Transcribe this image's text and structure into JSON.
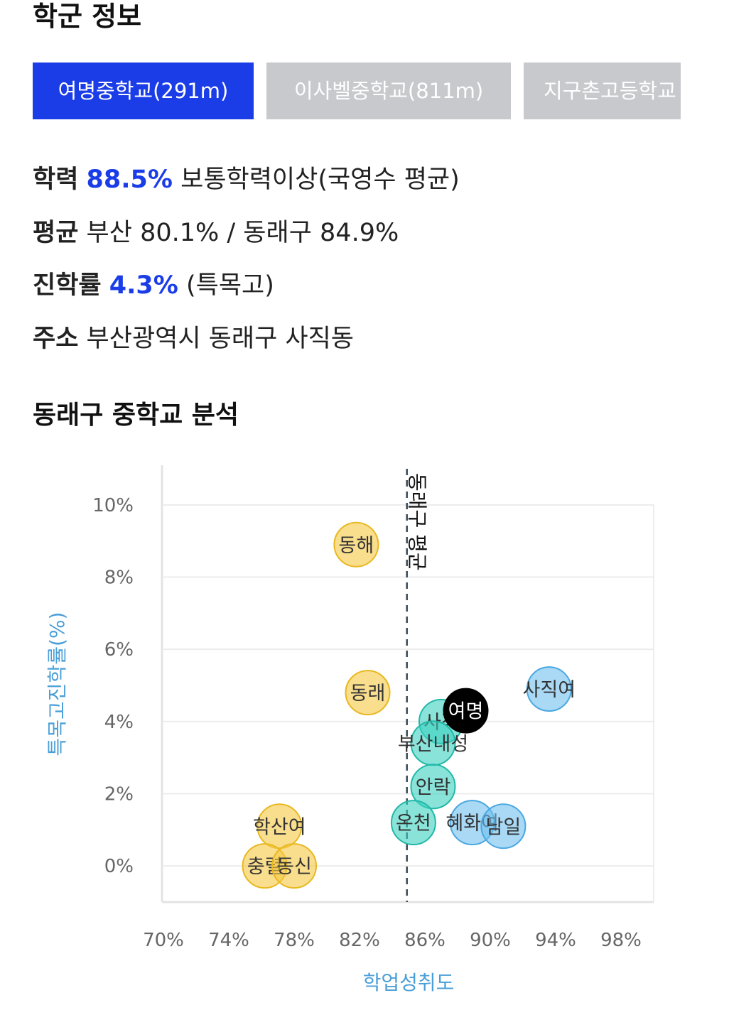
{
  "section_school_info": {
    "title": "학군 정보"
  },
  "tabs": [
    {
      "label": "여명중학교(291m)",
      "active": true
    },
    {
      "label": "이사벨중학교(811m)",
      "active": false
    },
    {
      "label": "지구촌고등학교",
      "active": false
    }
  ],
  "info": {
    "academic": {
      "label": "학력",
      "value": "88.5%",
      "desc": "보통학력이상(국영수 평균)"
    },
    "average": {
      "label": "평균",
      "text": "부산 80.1% / 동래구 84.9%"
    },
    "advancement": {
      "label": "진학률",
      "value": "4.3%",
      "desc": "(특목고)"
    },
    "address": {
      "label": "주소",
      "text": "부산광역시 동래구 사직동"
    }
  },
  "section_analysis": {
    "title": "동래구 중학교 분석"
  },
  "colors": {
    "accent": "#1b3de8",
    "tab_inactive": "#c7c9cd",
    "bubble_yellow": "#f5c842",
    "bubble_teal": "#3ad0c0",
    "bubble_blue": "#6fbfee",
    "highlight": "#000000",
    "axis_label": "#4a9fd8"
  },
  "chart_data": {
    "type": "scatter",
    "xlabel": "학업성취도",
    "ylabel": "특목고진학률(%)",
    "xlim": [
      70,
      100
    ],
    "ylim": [
      -1,
      11
    ],
    "x_ticks": [
      "70%",
      "74%",
      "78%",
      "82%",
      "86%",
      "90%",
      "94%",
      "98%"
    ],
    "x_tick_values": [
      70,
      74,
      78,
      82,
      86,
      90,
      94,
      98
    ],
    "y_ticks": [
      "0%",
      "2%",
      "4%",
      "6%",
      "8%",
      "10%"
    ],
    "y_tick_values": [
      0,
      2,
      4,
      6,
      8,
      10
    ],
    "reference_line": {
      "label": "동래구 평균",
      "x": 84.9
    },
    "points": [
      {
        "name": "동해",
        "x": 81.8,
        "y": 8.9,
        "group": "yellow"
      },
      {
        "name": "동래",
        "x": 82.5,
        "y": 4.8,
        "group": "yellow"
      },
      {
        "name": "학산여",
        "x": 77.1,
        "y": 1.1,
        "group": "yellow"
      },
      {
        "name": "충렬",
        "x": 76.2,
        "y": 0.0,
        "group": "yellow"
      },
      {
        "name": "동신",
        "x": 78.0,
        "y": 0.0,
        "group": "yellow"
      },
      {
        "name": "사직",
        "x": 87.0,
        "y": 4.0,
        "group": "teal"
      },
      {
        "name": "부산내성",
        "x": 86.5,
        "y": 3.4,
        "group": "teal"
      },
      {
        "name": "안락",
        "x": 86.5,
        "y": 2.2,
        "group": "teal"
      },
      {
        "name": "온천",
        "x": 85.3,
        "y": 1.2,
        "group": "teal"
      },
      {
        "name": "혜화여",
        "x": 88.9,
        "y": 1.2,
        "group": "blue"
      },
      {
        "name": "남일",
        "x": 90.8,
        "y": 1.1,
        "group": "blue"
      },
      {
        "name": "사직여",
        "x": 93.6,
        "y": 4.9,
        "group": "blue"
      },
      {
        "name": "여명",
        "x": 88.5,
        "y": 4.3,
        "group": "highlight"
      }
    ]
  }
}
